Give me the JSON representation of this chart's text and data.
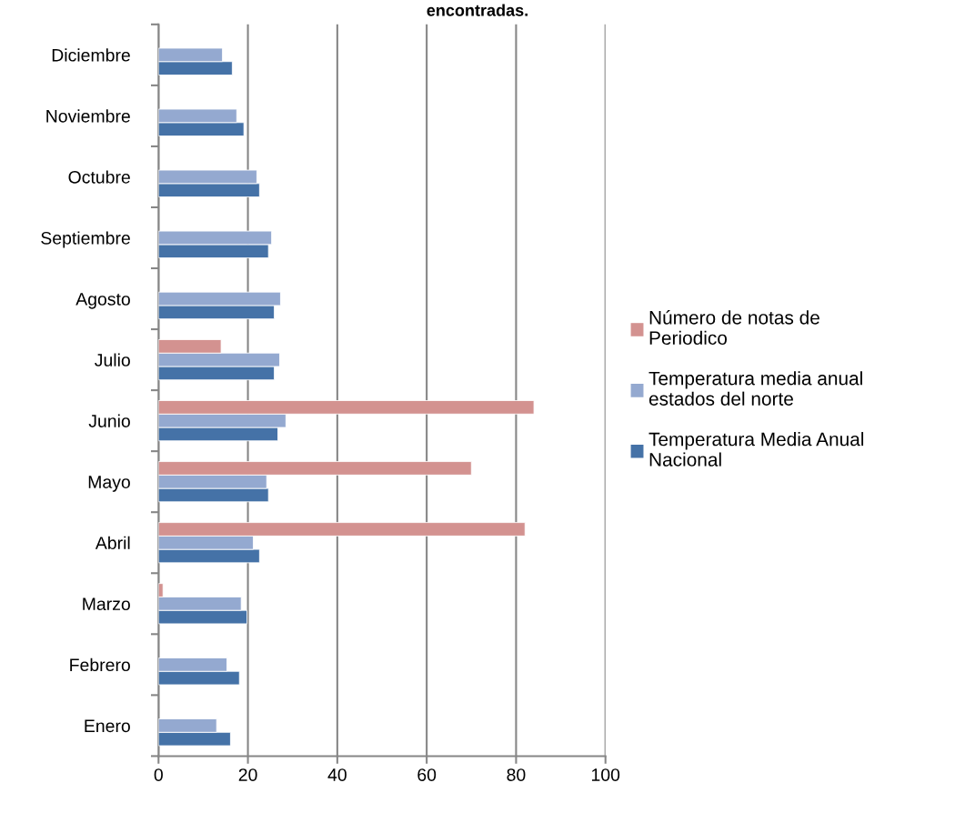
{
  "chart_data": {
    "type": "bar",
    "orientation": "horizontal",
    "title": "encontradas.",
    "categories": [
      "Diciembre",
      "Noviembre",
      "Octubre",
      "Septiembre",
      "Agosto",
      "Julio",
      "Junio",
      "Mayo",
      "Abril",
      "Marzo",
      "Febrero",
      "Enero"
    ],
    "series": [
      {
        "name": "Temperatura Media Anual Nacional",
        "color": "#4572a7",
        "values": [
          16.5,
          19.1,
          22.6,
          24.6,
          25.9,
          25.9,
          26.7,
          24.6,
          22.6,
          19.8,
          18.1,
          16.1
        ]
      },
      {
        "name": "Temperatura media anual estados del norte",
        "color": "#94a9d0",
        "values": [
          14.3,
          17.5,
          22.0,
          25.3,
          27.3,
          27.1,
          28.5,
          24.2,
          21.2,
          18.5,
          15.3,
          13.0
        ]
      },
      {
        "name": "Número de notas de Periodico",
        "color": "#d39290",
        "values": [
          null,
          null,
          null,
          null,
          null,
          14,
          84,
          70,
          82,
          1,
          null,
          null
        ]
      }
    ],
    "xlim": [
      0,
      100
    ],
    "xticks": [
      0,
      20,
      40,
      60,
      80,
      100
    ],
    "grid": "x",
    "legend": "right"
  }
}
